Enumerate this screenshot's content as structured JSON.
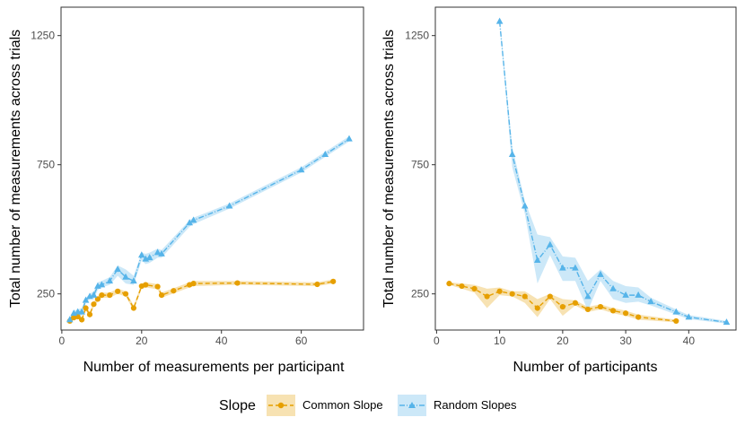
{
  "chart_data": [
    {
      "type": "line",
      "xlabel": "Number of measurements per participant",
      "ylabel": "Total number of measurements across trials",
      "xlim": [
        -0.2,
        75.6
      ],
      "ylim": [
        110,
        1360
      ],
      "xticks": [
        0,
        20,
        40,
        60
      ],
      "yticks": [
        250,
        750,
        1250
      ],
      "series": [
        {
          "name": "Common Slope",
          "color": "#E69F00",
          "marker": "circle",
          "dash": "dashed",
          "points": [
            {
              "x": 2,
              "y": 145,
              "lo": 140,
              "hi": 150
            },
            {
              "x": 3,
              "y": 158,
              "lo": 150,
              "hi": 165
            },
            {
              "x": 4,
              "y": 162,
              "lo": 155,
              "hi": 170
            },
            {
              "x": 5,
              "y": 150,
              "lo": 145,
              "hi": 158
            },
            {
              "x": 6,
              "y": 195,
              "lo": 185,
              "hi": 205
            },
            {
              "x": 7,
              "y": 170,
              "lo": 162,
              "hi": 180
            },
            {
              "x": 8,
              "y": 210,
              "lo": 200,
              "hi": 220
            },
            {
              "x": 9,
              "y": 230,
              "lo": 220,
              "hi": 240
            },
            {
              "x": 10,
              "y": 245,
              "lo": 235,
              "hi": 255
            },
            {
              "x": 12,
              "y": 245,
              "lo": 235,
              "hi": 255
            },
            {
              "x": 14,
              "y": 260,
              "lo": 250,
              "hi": 270
            },
            {
              "x": 16,
              "y": 250,
              "lo": 240,
              "hi": 260
            },
            {
              "x": 18,
              "y": 195,
              "lo": 185,
              "hi": 205
            },
            {
              "x": 20,
              "y": 280,
              "lo": 270,
              "hi": 290
            },
            {
              "x": 21,
              "y": 285,
              "lo": 275,
              "hi": 295
            },
            {
              "x": 24,
              "y": 278,
              "lo": 268,
              "hi": 288
            },
            {
              "x": 25,
              "y": 245,
              "lo": 235,
              "hi": 255
            },
            {
              "x": 28,
              "y": 262,
              "lo": 252,
              "hi": 272
            },
            {
              "x": 32,
              "y": 285,
              "lo": 275,
              "hi": 295
            },
            {
              "x": 33,
              "y": 290,
              "lo": 280,
              "hi": 300
            },
            {
              "x": 44,
              "y": 292,
              "lo": 285,
              "hi": 300
            },
            {
              "x": 64,
              "y": 287,
              "lo": 280,
              "hi": 295
            },
            {
              "x": 68,
              "y": 298,
              "lo": 290,
              "hi": 306
            }
          ]
        },
        {
          "name": "Random Slopes",
          "color": "#56B4E9",
          "marker": "triangle",
          "dash": "dashdot",
          "points": [
            {
              "x": 2,
              "y": 150,
              "lo": 145,
              "hi": 155
            },
            {
              "x": 3,
              "y": 175,
              "lo": 165,
              "hi": 185
            },
            {
              "x": 4,
              "y": 180,
              "lo": 170,
              "hi": 190
            },
            {
              "x": 5,
              "y": 180,
              "lo": 165,
              "hi": 195
            },
            {
              "x": 6,
              "y": 225,
              "lo": 215,
              "hi": 235
            },
            {
              "x": 7,
              "y": 240,
              "lo": 230,
              "hi": 250
            },
            {
              "x": 8,
              "y": 245,
              "lo": 230,
              "hi": 260
            },
            {
              "x": 9,
              "y": 280,
              "lo": 265,
              "hi": 295
            },
            {
              "x": 10,
              "y": 285,
              "lo": 275,
              "hi": 300
            },
            {
              "x": 12,
              "y": 300,
              "lo": 285,
              "hi": 315
            },
            {
              "x": 14,
              "y": 345,
              "lo": 320,
              "hi": 360
            },
            {
              "x": 16,
              "y": 315,
              "lo": 290,
              "hi": 345
            },
            {
              "x": 18,
              "y": 300,
              "lo": 285,
              "hi": 320
            },
            {
              "x": 20,
              "y": 400,
              "lo": 380,
              "hi": 410
            },
            {
              "x": 21,
              "y": 385,
              "lo": 365,
              "hi": 405
            },
            {
              "x": 22,
              "y": 390,
              "lo": 370,
              "hi": 410
            },
            {
              "x": 24,
              "y": 410,
              "lo": 390,
              "hi": 425
            },
            {
              "x": 25,
              "y": 405,
              "lo": 390,
              "hi": 420
            },
            {
              "x": 32,
              "y": 525,
              "lo": 510,
              "hi": 535
            },
            {
              "x": 33,
              "y": 535,
              "lo": 520,
              "hi": 545
            },
            {
              "x": 42,
              "y": 590,
              "lo": 580,
              "hi": 600
            },
            {
              "x": 60,
              "y": 730,
              "lo": 720,
              "hi": 740
            },
            {
              "x": 66,
              "y": 790,
              "lo": 780,
              "hi": 800
            },
            {
              "x": 72,
              "y": 850,
              "lo": 840,
              "hi": 860
            }
          ]
        }
      ]
    },
    {
      "type": "line",
      "xlabel": "Number of participants",
      "ylabel": "Total number of measurements across trials",
      "xlim": [
        -0.2,
        47.5
      ],
      "ylim": [
        110,
        1360
      ],
      "xticks": [
        0,
        10,
        20,
        30,
        40
      ],
      "yticks": [
        250,
        750,
        1250
      ],
      "series": [
        {
          "name": "Common Slope",
          "color": "#E69F00",
          "marker": "circle",
          "dash": "dashed",
          "points": [
            {
              "x": 2,
              "y": 290,
              "lo": 285,
              "hi": 295
            },
            {
              "x": 4,
              "y": 280,
              "lo": 270,
              "hi": 290
            },
            {
              "x": 6,
              "y": 270,
              "lo": 255,
              "hi": 285
            },
            {
              "x": 8,
              "y": 240,
              "lo": 195,
              "hi": 270
            },
            {
              "x": 10,
              "y": 260,
              "lo": 245,
              "hi": 275
            },
            {
              "x": 12,
              "y": 250,
              "lo": 240,
              "hi": 260
            },
            {
              "x": 14,
              "y": 240,
              "lo": 215,
              "hi": 260
            },
            {
              "x": 16,
              "y": 195,
              "lo": 160,
              "hi": 230
            },
            {
              "x": 18,
              "y": 240,
              "lo": 230,
              "hi": 250
            },
            {
              "x": 20,
              "y": 200,
              "lo": 165,
              "hi": 230
            },
            {
              "x": 22,
              "y": 215,
              "lo": 205,
              "hi": 225
            },
            {
              "x": 24,
              "y": 190,
              "lo": 180,
              "hi": 200
            },
            {
              "x": 26,
              "y": 200,
              "lo": 190,
              "hi": 210
            },
            {
              "x": 28,
              "y": 185,
              "lo": 175,
              "hi": 195
            },
            {
              "x": 30,
              "y": 175,
              "lo": 165,
              "hi": 185
            },
            {
              "x": 32,
              "y": 160,
              "lo": 150,
              "hi": 170
            },
            {
              "x": 38,
              "y": 145,
              "lo": 140,
              "hi": 150
            }
          ]
        },
        {
          "name": "Random Slopes",
          "color": "#56B4E9",
          "marker": "triangle",
          "dash": "dashdot",
          "points": [
            {
              "x": 10,
              "y": 1305,
              "lo": 1300,
              "hi": 1310
            },
            {
              "x": 12,
              "y": 790,
              "lo": 740,
              "hi": 820
            },
            {
              "x": 14,
              "y": 590,
              "lo": 560,
              "hi": 610
            },
            {
              "x": 16,
              "y": 380,
              "lo": 290,
              "hi": 480
            },
            {
              "x": 18,
              "y": 440,
              "lo": 400,
              "hi": 470
            },
            {
              "x": 20,
              "y": 350,
              "lo": 300,
              "hi": 395
            },
            {
              "x": 22,
              "y": 350,
              "lo": 300,
              "hi": 390
            },
            {
              "x": 24,
              "y": 240,
              "lo": 185,
              "hi": 300
            },
            {
              "x": 26,
              "y": 325,
              "lo": 300,
              "hi": 345
            },
            {
              "x": 28,
              "y": 270,
              "lo": 230,
              "hi": 300
            },
            {
              "x": 30,
              "y": 245,
              "lo": 215,
              "hi": 280
            },
            {
              "x": 32,
              "y": 245,
              "lo": 220,
              "hi": 275
            },
            {
              "x": 34,
              "y": 220,
              "lo": 205,
              "hi": 235
            },
            {
              "x": 38,
              "y": 180,
              "lo": 170,
              "hi": 190
            },
            {
              "x": 40,
              "y": 160,
              "lo": 152,
              "hi": 168
            },
            {
              "x": 46,
              "y": 140,
              "lo": 135,
              "hi": 145
            }
          ]
        }
      ]
    }
  ],
  "legend": {
    "title": "Slope",
    "items": [
      {
        "label": "Common Slope",
        "color": "#E69F00",
        "marker": "circle"
      },
      {
        "label": "Random Slopes",
        "color": "#56B4E9",
        "marker": "triangle"
      }
    ]
  }
}
